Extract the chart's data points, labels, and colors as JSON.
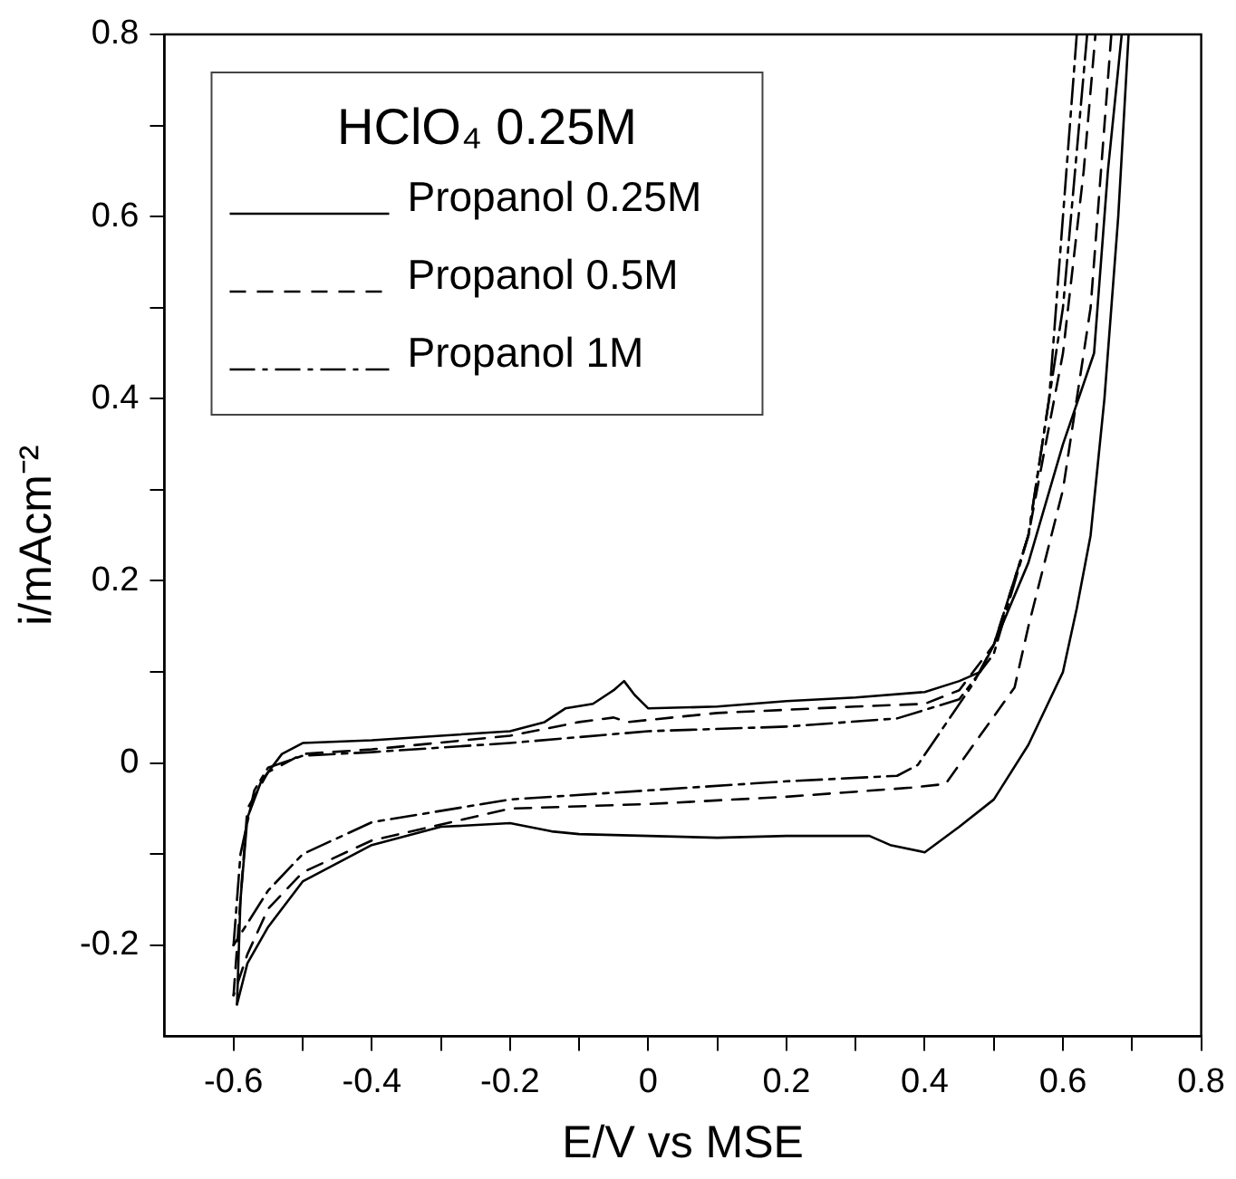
{
  "chart_data": {
    "type": "line",
    "xlabel": "E/V vs MSE",
    "ylabel": "i/mAcm⁻²",
    "legend_title": "HClO₄ 0.25M",
    "legend": "top left",
    "grid": false,
    "marker": "none",
    "xlim": [
      -0.7,
      0.8
    ],
    "xticks": [
      {
        "value": -0.6,
        "label": "-0.6"
      },
      {
        "value": -0.5,
        "label": null
      },
      {
        "value": -0.4,
        "label": "-0.4"
      },
      {
        "value": -0.3,
        "label": null
      },
      {
        "value": -0.2,
        "label": "-0.2"
      },
      {
        "value": -0.1,
        "label": null
      },
      0,
      {
        "value": 0.1,
        "label": null
      },
      {
        "value": 0.2,
        "label": "0.2"
      },
      {
        "value": 0.3,
        "label": null
      },
      {
        "value": 0.4,
        "label": "0.4"
      },
      {
        "value": 0.5,
        "label": null
      },
      {
        "value": 0.6,
        "label": "0.6"
      },
      {
        "value": 0.7,
        "label": null
      },
      {
        "value": 0.8,
        "label": "0.8"
      }
    ],
    "ylim": [
      -0.3,
      0.8
    ],
    "yticks": [
      {
        "value": -0.2,
        "label": "-0.2"
      },
      {
        "value": -0.1,
        "label": null
      },
      0,
      {
        "value": 0.1,
        "label": null
      },
      {
        "value": 0.2,
        "label": "0.2"
      },
      {
        "value": 0.3,
        "label": null
      },
      {
        "value": 0.4,
        "label": "0.4"
      },
      {
        "value": 0.5,
        "label": null
      },
      {
        "value": 0.6,
        "label": "0.6"
      },
      {
        "value": 0.7,
        "label": null
      },
      {
        "value": 0.8,
        "label": "0.8"
      }
    ],
    "series": [
      {
        "name": "Propanol 0.25M",
        "color": "#000000",
        "line_style": "solid",
        "x": [
          -0.595,
          -0.59,
          -0.58,
          -0.56,
          -0.53,
          -0.5,
          -0.4,
          -0.3,
          -0.2,
          -0.15,
          -0.12,
          -0.08,
          -0.05,
          -0.035,
          -0.02,
          0,
          0.1,
          0.2,
          0.3,
          0.4,
          0.45,
          0.48,
          0.5,
          0.55,
          0.6,
          0.645,
          0.665,
          0.685
        ],
        "values": [
          -0.265,
          -0.15,
          -0.06,
          -0.02,
          0.01,
          0.022,
          0.025,
          0.03,
          0.035,
          0.045,
          0.06,
          0.065,
          0.08,
          0.09,
          0.075,
          0.06,
          0.062,
          0.068,
          0.072,
          0.078,
          0.09,
          0.1,
          0.13,
          0.22,
          0.35,
          0.45,
          0.65,
          0.8
        ]
      },
      {
        "name": "Propanol 0.5M",
        "color": "#000000",
        "line_style": "dashed",
        "x": [
          -0.6,
          -0.59,
          -0.58,
          -0.55,
          -0.5,
          -0.4,
          -0.2,
          -0.1,
          -0.05,
          -0.03,
          0.1,
          0.3,
          0.4,
          0.45,
          0.5,
          0.55,
          0.6,
          0.63,
          0.647
        ],
        "values": [
          -0.255,
          -0.15,
          -0.05,
          -0.01,
          0.01,
          0.015,
          0.03,
          0.045,
          0.05,
          0.045,
          0.055,
          0.062,
          0.065,
          0.08,
          0.13,
          0.25,
          0.45,
          0.65,
          0.8
        ]
      },
      {
        "name": "Propanol 1M",
        "color": "#000000",
        "line_style": "dashdot",
        "x": [
          -0.6,
          -0.59,
          -0.57,
          -0.55,
          -0.5,
          -0.4,
          -0.2,
          0,
          0.2,
          0.36,
          0.45,
          0.5,
          0.55,
          0.58,
          0.6,
          0.62
        ],
        "values": [
          -0.2,
          -0.1,
          -0.03,
          -0.005,
          0.008,
          0.012,
          0.022,
          0.035,
          0.04,
          0.049,
          0.07,
          0.12,
          0.25,
          0.4,
          0.6,
          0.8
        ]
      },
      {
        "color": "#000000",
        "line_style": "solid",
        "x": [
          0.695,
          0.68,
          0.66,
          0.64,
          0.62,
          0.6,
          0.55,
          0.5,
          0.45,
          0.4,
          0.35,
          0.32,
          0.2,
          0.1,
          0,
          -0.1,
          -0.14,
          -0.2,
          -0.3,
          -0.4,
          -0.5,
          -0.55,
          -0.58,
          -0.595
        ],
        "values": [
          0.8,
          0.6,
          0.4,
          0.25,
          0.17,
          0.1,
          0.02,
          -0.04,
          -0.07,
          -0.098,
          -0.09,
          -0.08,
          -0.08,
          -0.082,
          -0.08,
          -0.078,
          -0.075,
          -0.066,
          -0.07,
          -0.09,
          -0.13,
          -0.18,
          -0.22,
          -0.265
        ]
      },
      {
        "color": "#000000",
        "line_style": "dashed",
        "x": [
          0.67,
          0.64,
          0.6,
          0.55,
          0.53,
          0.43,
          0.38,
          0.2,
          0,
          -0.2,
          -0.4,
          -0.5,
          -0.55,
          -0.58,
          -0.6
        ],
        "values": [
          0.8,
          0.5,
          0.3,
          0.15,
          0.083,
          -0.023,
          -0.027,
          -0.037,
          -0.045,
          -0.05,
          -0.085,
          -0.12,
          -0.16,
          -0.21,
          -0.255
        ]
      },
      {
        "color": "#000000",
        "line_style": "dashdot",
        "x": [
          0.635,
          0.6,
          0.55,
          0.5,
          0.47,
          0.39,
          0.36,
          0.2,
          0,
          -0.2,
          -0.4,
          -0.5,
          -0.55,
          -0.6
        ],
        "values": [
          0.8,
          0.5,
          0.25,
          0.13,
          0.087,
          -0.002,
          -0.014,
          -0.02,
          -0.03,
          -0.04,
          -0.065,
          -0.1,
          -0.14,
          -0.2
        ]
      }
    ]
  }
}
